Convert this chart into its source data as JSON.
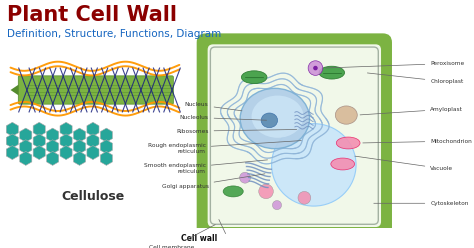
{
  "title": "Plant Cell Wall",
  "subtitle": "Definition, Structure, Functions, Diagram",
  "title_color": "#8B0000",
  "subtitle_color": "#1565C0",
  "background_color": "#FFFFFF",
  "cellulose_label": "Cellulose",
  "label_color": "#333333",
  "cell_labels_left": [
    "Nucleus",
    "Nucleolus",
    "Ribosomes",
    "Rough endoplasmic\nreticulum",
    "Smooth endoplasmic\nreticulum",
    "Golgi apparatus",
    "Cell wall",
    "Cell membrane"
  ],
  "cell_labels_right": [
    "Peroxisome",
    "Chloroplast",
    "Amyloplast",
    "Mitochondrion",
    "Vacuole",
    "Cytoskeleton"
  ],
  "cell_wall_color": "#7CB342",
  "cell_interior_color": "#F1F8E9",
  "vacuole_color": "#C8E6FA",
  "nucleus_outer_color": "#B0CEE8",
  "nucleus_inner_color": "#7AAFD4",
  "nucleolus_color": "#5A8AB0",
  "er_color": "#90CAF9",
  "golgi_color": "#90CAF9",
  "chloroplast_color": "#43A047",
  "mitochondria_color": "#F48FB1",
  "peroxisome_color": "#CE93D8",
  "amyloplast_color": "#D7B896",
  "cellulose_hex_color": "#26A69A",
  "fiber_green": "#7CB342",
  "fiber_orange": "#FF9800",
  "fiber_blue": "#1A237E",
  "fiber_dark_green": "#558B2F"
}
